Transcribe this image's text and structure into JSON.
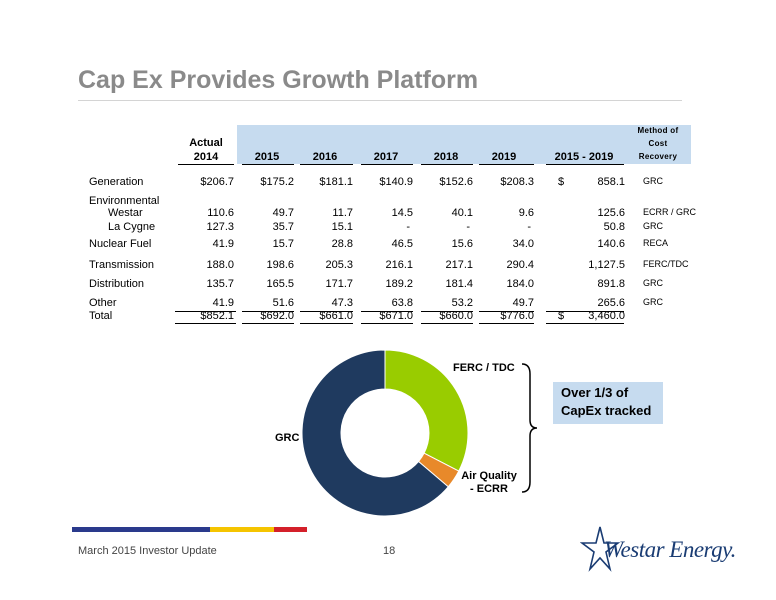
{
  "slide": {
    "title": "Cap Ex Provides Growth Platform",
    "footer_left": "March 2015 Investor Update",
    "page_number": "18",
    "logo_text": "Westar Energy."
  },
  "table": {
    "header": {
      "actual_line1": "Actual",
      "actual_line2": "2014",
      "years": [
        "2015",
        "2016",
        "2017",
        "2018",
        "2019"
      ],
      "range": "2015 - 2019",
      "method_line1": "Method of",
      "method_line2": "Cost",
      "method_line3": "Recovery"
    },
    "rows": [
      {
        "label": "Generation",
        "values": [
          "$206.7",
          "$175.2",
          "$181.1",
          "$140.9",
          "$152.6",
          "$208.3"
        ],
        "range_symbol": "$",
        "range_value": "858.1",
        "method": "GRC"
      },
      {
        "label": "Environmental",
        "values": [
          "",
          "",
          "",
          "",
          "",
          ""
        ],
        "range_symbol": "",
        "range_value": "",
        "method": ""
      },
      {
        "label": "Westar",
        "values": [
          "110.6",
          "49.7",
          "11.7",
          "14.5",
          "40.1",
          "9.6"
        ],
        "range_symbol": "",
        "range_value": "125.6",
        "method": "ECRR / GRC"
      },
      {
        "label": "La Cygne",
        "values": [
          "127.3",
          "35.7",
          "15.1",
          "-",
          "-",
          "-"
        ],
        "range_symbol": "",
        "range_value": "50.8",
        "method": "GRC"
      },
      {
        "label": "Nuclear Fuel",
        "values": [
          "41.9",
          "15.7",
          "28.8",
          "46.5",
          "15.6",
          "34.0"
        ],
        "range_symbol": "",
        "range_value": "140.6",
        "method": "RECA"
      },
      {
        "label": "Transmission",
        "values": [
          "188.0",
          "198.6",
          "205.3",
          "216.1",
          "217.1",
          "290.4"
        ],
        "range_symbol": "",
        "range_value": "1,127.5",
        "method": "FERC/TDC"
      },
      {
        "label": "Distribution",
        "values": [
          "135.7",
          "165.5",
          "171.7",
          "189.2",
          "181.4",
          "184.0"
        ],
        "range_symbol": "",
        "range_value": "891.8",
        "method": "GRC"
      },
      {
        "label": "Other",
        "values": [
          "41.9",
          "51.6",
          "47.3",
          "63.8",
          "53.2",
          "49.7"
        ],
        "range_symbol": "",
        "range_value": "265.6",
        "method": "GRC"
      },
      {
        "label": "Total",
        "values": [
          "$852.1",
          "$692.0",
          "$661.0",
          "$671.0",
          "$660.0",
          "$776.0"
        ],
        "range_symbol": "$",
        "range_value": "3,460.0",
        "method": ""
      }
    ]
  },
  "donut": {
    "labels": {
      "ferc": "FERC / TDC",
      "grc": "GRC",
      "air_line1": "Air Quality",
      "air_line2": "- ECRR"
    },
    "callout_line1": "Over 1/3 of",
    "callout_line2": "CapEx tracked"
  },
  "chart_data": {
    "type": "pie",
    "labels": [
      "FERC / TDC",
      "Air Quality - ECRR",
      "GRC"
    ],
    "values": [
      1127.5,
      125.6,
      2206.9
    ],
    "colors": [
      "#99cc00",
      "#e8892a",
      "#1f3a5f"
    ]
  }
}
